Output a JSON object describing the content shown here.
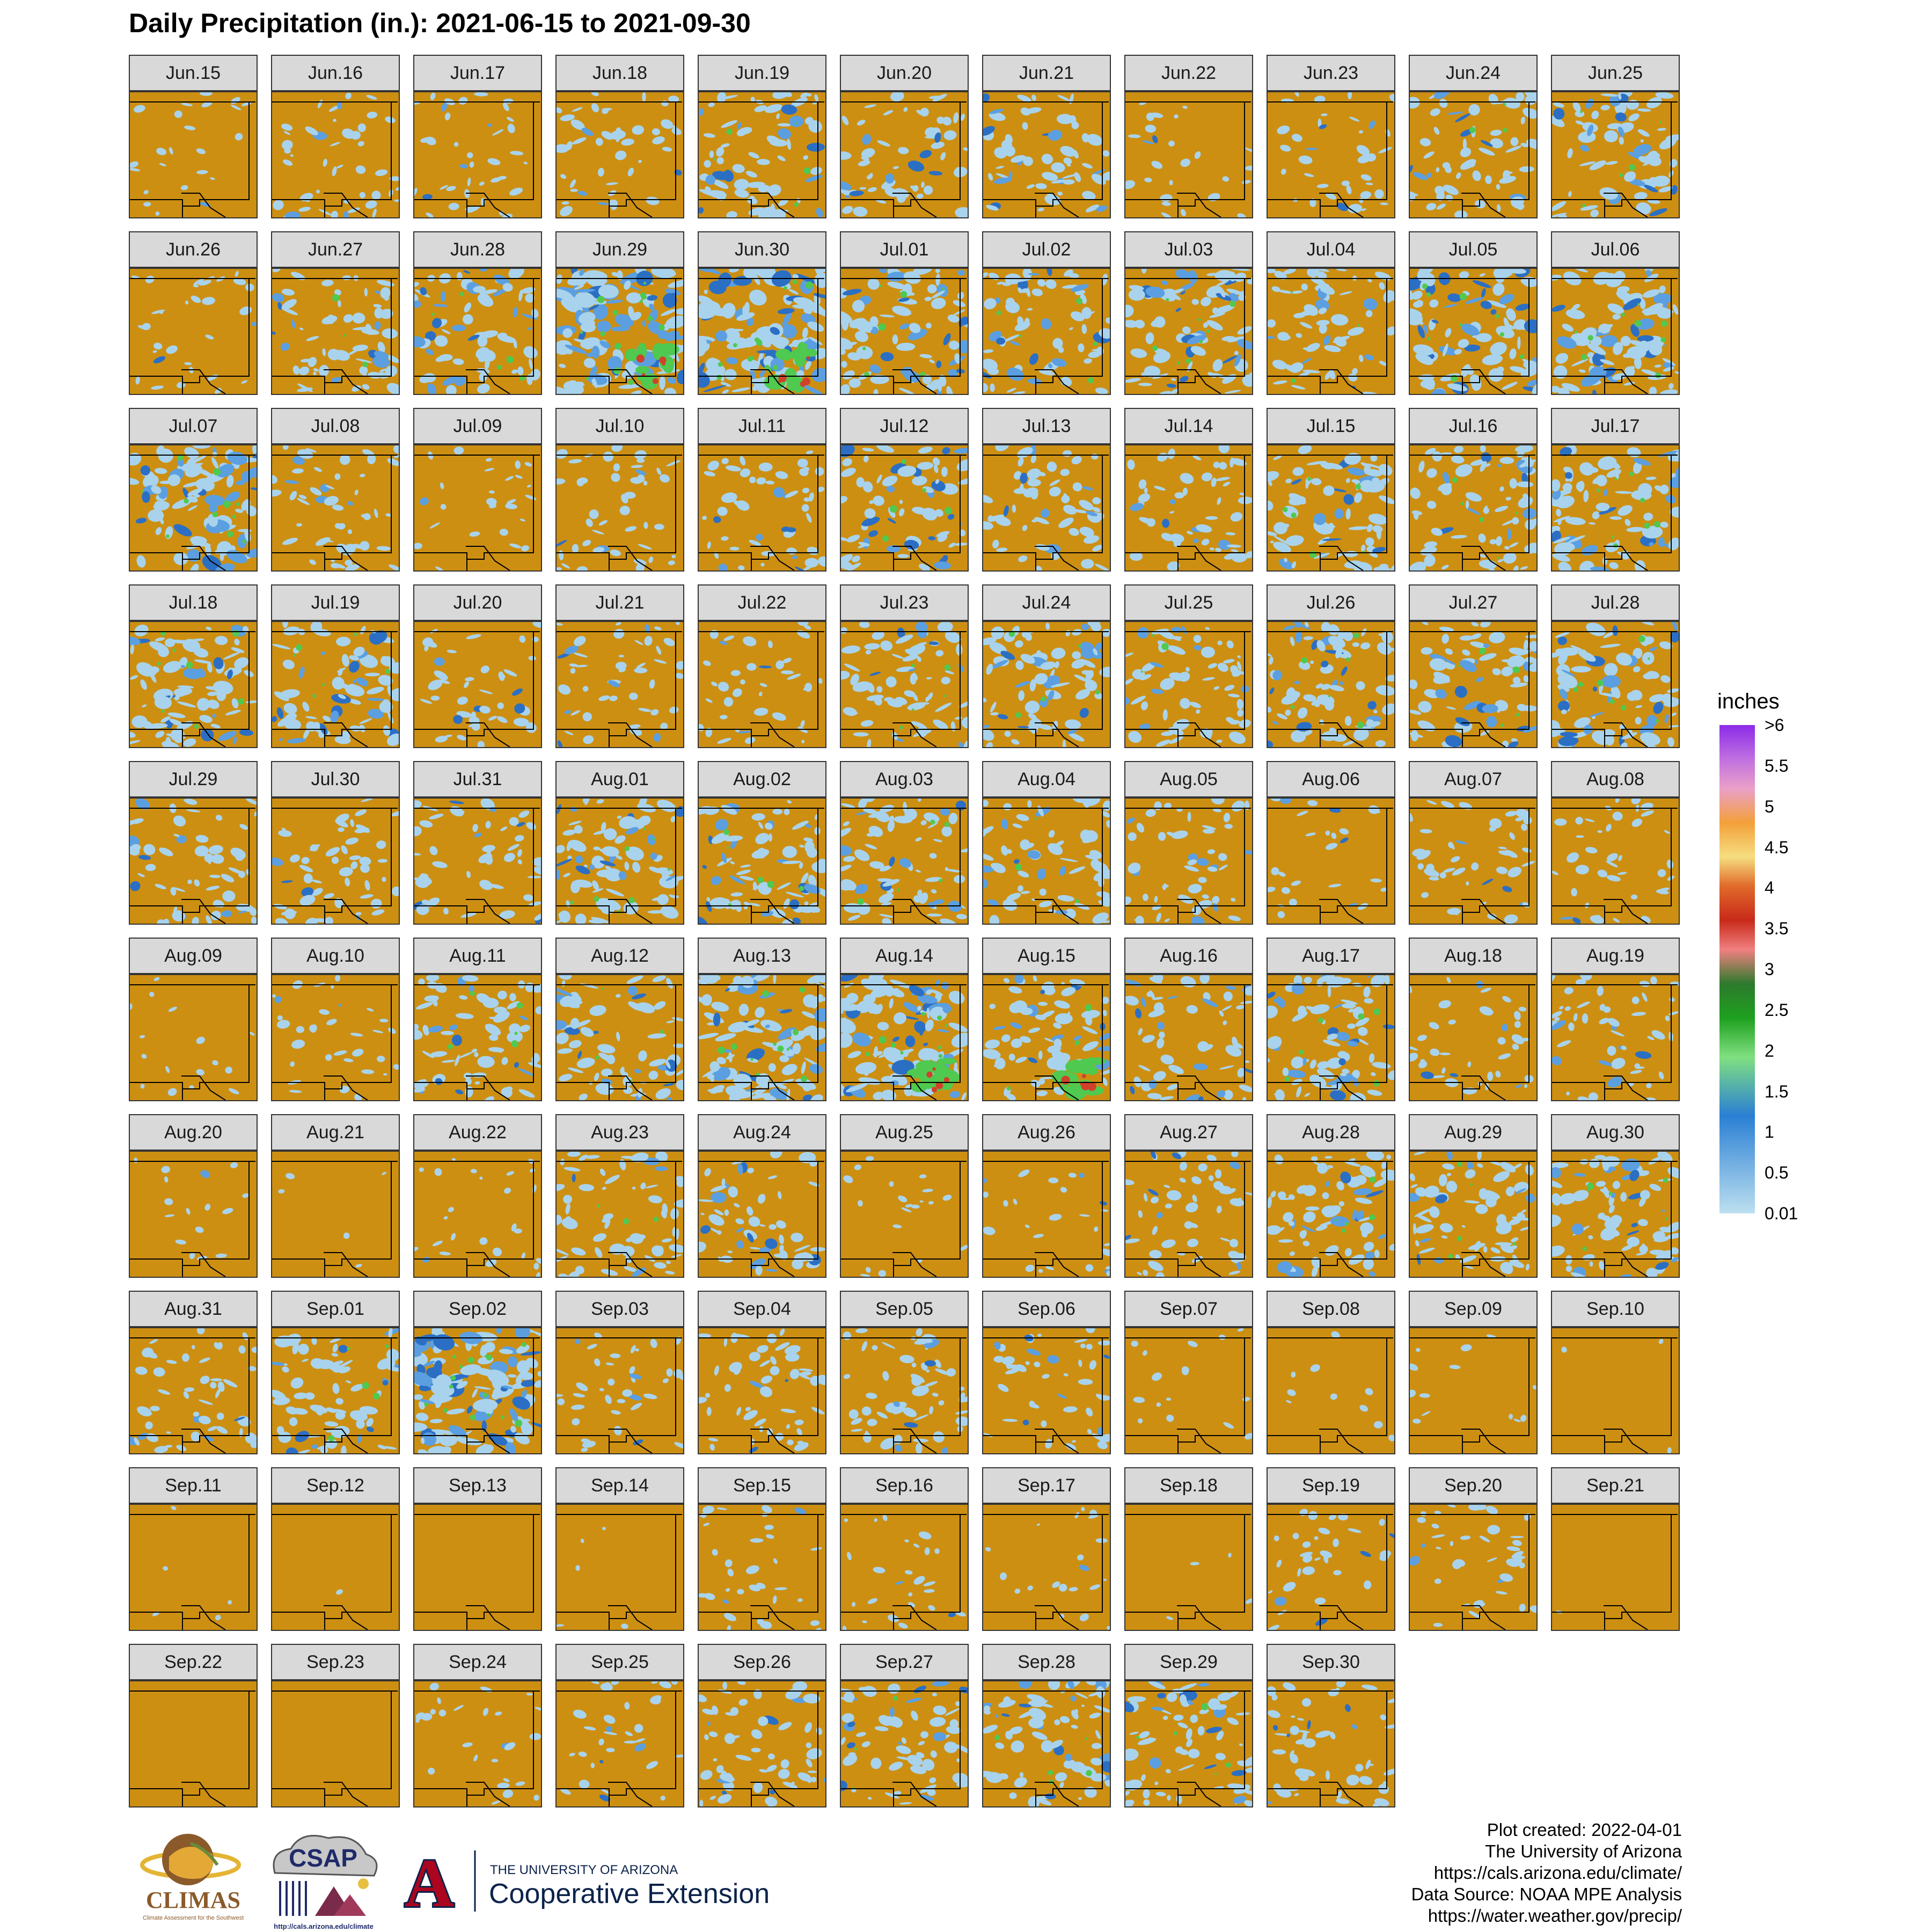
{
  "title": "Daily Precipitation (in.): 2021-06-15 to 2021-09-30",
  "panels": [
    {
      "label": "Jun.15",
      "rain": 0.18,
      "seed": 101
    },
    {
      "label": "Jun.16",
      "rain": 0.35,
      "seed": 102
    },
    {
      "label": "Jun.17",
      "rain": 0.3,
      "seed": 103
    },
    {
      "label": "Jun.18",
      "rain": 0.35,
      "seed": 104
    },
    {
      "label": "Jun.19",
      "rain": 0.55,
      "seed": 105
    },
    {
      "label": "Jun.20",
      "rain": 0.45,
      "seed": 106
    },
    {
      "label": "Jun.21",
      "rain": 0.45,
      "seed": 107
    },
    {
      "label": "Jun.22",
      "rain": 0.2,
      "seed": 108
    },
    {
      "label": "Jun.23",
      "rain": 0.3,
      "seed": 109
    },
    {
      "label": "Jun.24",
      "rain": 0.5,
      "seed": 110
    },
    {
      "label": "Jun.25",
      "rain": 0.55,
      "seed": 111
    },
    {
      "label": "Jun.26",
      "rain": 0.25,
      "seed": 112
    },
    {
      "label": "Jun.27",
      "rain": 0.5,
      "seed": 113
    },
    {
      "label": "Jun.28",
      "rain": 0.55,
      "seed": 114
    },
    {
      "label": "Jun.29",
      "rain": 0.9,
      "seed": 115,
      "heavy": true
    },
    {
      "label": "Jun.30",
      "rain": 0.9,
      "seed": 116,
      "heavy": true
    },
    {
      "label": "Jul.01",
      "rain": 0.65,
      "seed": 117
    },
    {
      "label": "Jul.02",
      "rain": 0.55,
      "seed": 118
    },
    {
      "label": "Jul.03",
      "rain": 0.65,
      "seed": 119
    },
    {
      "label": "Jul.04",
      "rain": 0.5,
      "seed": 120
    },
    {
      "label": "Jul.05",
      "rain": 0.7,
      "seed": 121
    },
    {
      "label": "Jul.06",
      "rain": 0.7,
      "seed": 122
    },
    {
      "label": "Jul.07",
      "rain": 0.75,
      "seed": 123
    },
    {
      "label": "Jul.08",
      "rain": 0.4,
      "seed": 124
    },
    {
      "label": "Jul.09",
      "rain": 0.2,
      "seed": 125
    },
    {
      "label": "Jul.10",
      "rain": 0.35,
      "seed": 126
    },
    {
      "label": "Jul.11",
      "rain": 0.4,
      "seed": 127
    },
    {
      "label": "Jul.12",
      "rain": 0.55,
      "seed": 128
    },
    {
      "label": "Jul.13",
      "rain": 0.45,
      "seed": 129
    },
    {
      "label": "Jul.14",
      "rain": 0.4,
      "seed": 130
    },
    {
      "label": "Jul.15",
      "rain": 0.6,
      "seed": 131
    },
    {
      "label": "Jul.16",
      "rain": 0.55,
      "seed": 132
    },
    {
      "label": "Jul.17",
      "rain": 0.65,
      "seed": 133
    },
    {
      "label": "Jul.18",
      "rain": 0.65,
      "seed": 134
    },
    {
      "label": "Jul.19",
      "rain": 0.6,
      "seed": 135
    },
    {
      "label": "Jul.20",
      "rain": 0.35,
      "seed": 136
    },
    {
      "label": "Jul.21",
      "rain": 0.35,
      "seed": 137
    },
    {
      "label": "Jul.22",
      "rain": 0.3,
      "seed": 138
    },
    {
      "label": "Jul.23",
      "rain": 0.55,
      "seed": 139
    },
    {
      "label": "Jul.24",
      "rain": 0.6,
      "seed": 140
    },
    {
      "label": "Jul.25",
      "rain": 0.5,
      "seed": 141
    },
    {
      "label": "Jul.26",
      "rain": 0.6,
      "seed": 142
    },
    {
      "label": "Jul.27",
      "rain": 0.55,
      "seed": 143
    },
    {
      "label": "Jul.28",
      "rain": 0.65,
      "seed": 144
    },
    {
      "label": "Jul.29",
      "rain": 0.45,
      "seed": 145
    },
    {
      "label": "Jul.30",
      "rain": 0.4,
      "seed": 146
    },
    {
      "label": "Jul.31",
      "rain": 0.4,
      "seed": 147
    },
    {
      "label": "Aug.01",
      "rain": 0.65,
      "seed": 148
    },
    {
      "label": "Aug.02",
      "rain": 0.6,
      "seed": 149
    },
    {
      "label": "Aug.03",
      "rain": 0.55,
      "seed": 150
    },
    {
      "label": "Aug.04",
      "rain": 0.5,
      "seed": 151
    },
    {
      "label": "Aug.05",
      "rain": 0.4,
      "seed": 152
    },
    {
      "label": "Aug.06",
      "rain": 0.2,
      "seed": 153
    },
    {
      "label": "Aug.07",
      "rain": 0.35,
      "seed": 154
    },
    {
      "label": "Aug.08",
      "rain": 0.3,
      "seed": 155
    },
    {
      "label": "Aug.09",
      "rain": 0.12,
      "seed": 156
    },
    {
      "label": "Aug.10",
      "rain": 0.25,
      "seed": 157
    },
    {
      "label": "Aug.11",
      "rain": 0.55,
      "seed": 158
    },
    {
      "label": "Aug.12",
      "rain": 0.55,
      "seed": 159
    },
    {
      "label": "Aug.13",
      "rain": 0.75,
      "seed": 160
    },
    {
      "label": "Aug.14",
      "rain": 0.8,
      "seed": 161,
      "heavy": true
    },
    {
      "label": "Aug.15",
      "rain": 0.55,
      "seed": 162,
      "heavy": true
    },
    {
      "label": "Aug.16",
      "rain": 0.45,
      "seed": 163
    },
    {
      "label": "Aug.17",
      "rain": 0.6,
      "seed": 164
    },
    {
      "label": "Aug.18",
      "rain": 0.3,
      "seed": 165
    },
    {
      "label": "Aug.19",
      "rain": 0.4,
      "seed": 166
    },
    {
      "label": "Aug.20",
      "rain": 0.12,
      "seed": 167
    },
    {
      "label": "Aug.21",
      "rain": 0.04,
      "seed": 168
    },
    {
      "label": "Aug.22",
      "rain": 0.2,
      "seed": 169
    },
    {
      "label": "Aug.23",
      "rain": 0.5,
      "seed": 170
    },
    {
      "label": "Aug.24",
      "rain": 0.45,
      "seed": 171
    },
    {
      "label": "Aug.25",
      "rain": 0.15,
      "seed": 172
    },
    {
      "label": "Aug.26",
      "rain": 0.2,
      "seed": 173
    },
    {
      "label": "Aug.27",
      "rain": 0.4,
      "seed": 174
    },
    {
      "label": "Aug.28",
      "rain": 0.55,
      "seed": 175
    },
    {
      "label": "Aug.29",
      "rain": 0.55,
      "seed": 176
    },
    {
      "label": "Aug.30",
      "rain": 0.6,
      "seed": 177
    },
    {
      "label": "Aug.31",
      "rain": 0.4,
      "seed": 178
    },
    {
      "label": "Sep.01",
      "rain": 0.55,
      "seed": 179
    },
    {
      "label": "Sep.02",
      "rain": 0.9,
      "seed": 180
    },
    {
      "label": "Sep.03",
      "rain": 0.3,
      "seed": 181
    },
    {
      "label": "Sep.04",
      "rain": 0.4,
      "seed": 182
    },
    {
      "label": "Sep.05",
      "rain": 0.45,
      "seed": 183
    },
    {
      "label": "Sep.06",
      "rain": 0.35,
      "seed": 184
    },
    {
      "label": "Sep.07",
      "rain": 0.12,
      "seed": 185
    },
    {
      "label": "Sep.08",
      "rain": 0.08,
      "seed": 186
    },
    {
      "label": "Sep.09",
      "rain": 0.1,
      "seed": 187
    },
    {
      "label": "Sep.10",
      "rain": 0.02,
      "seed": 188
    },
    {
      "label": "Sep.11",
      "rain": 0.04,
      "seed": 189
    },
    {
      "label": "Sep.12",
      "rain": 0.01,
      "seed": 190
    },
    {
      "label": "Sep.13",
      "rain": 0.0,
      "seed": 191
    },
    {
      "label": "Sep.14",
      "rain": 0.04,
      "seed": 192
    },
    {
      "label": "Sep.15",
      "rain": 0.25,
      "seed": 193
    },
    {
      "label": "Sep.16",
      "rain": 0.2,
      "seed": 194
    },
    {
      "label": "Sep.17",
      "rain": 0.15,
      "seed": 195
    },
    {
      "label": "Sep.18",
      "rain": 0.03,
      "seed": 196
    },
    {
      "label": "Sep.19",
      "rain": 0.25,
      "seed": 197
    },
    {
      "label": "Sep.20",
      "rain": 0.3,
      "seed": 198
    },
    {
      "label": "Sep.21",
      "rain": 0.01,
      "seed": 199
    },
    {
      "label": "Sep.22",
      "rain": 0.0,
      "seed": 200
    },
    {
      "label": "Sep.23",
      "rain": 0.0,
      "seed": 201
    },
    {
      "label": "Sep.24",
      "rain": 0.2,
      "seed": 202
    },
    {
      "label": "Sep.25",
      "rain": 0.25,
      "seed": 203
    },
    {
      "label": "Sep.26",
      "rain": 0.45,
      "seed": 204
    },
    {
      "label": "Sep.27",
      "rain": 0.5,
      "seed": 205
    },
    {
      "label": "Sep.28",
      "rain": 0.55,
      "seed": 206
    },
    {
      "label": "Sep.29",
      "rain": 0.55,
      "seed": 207
    },
    {
      "label": "Sep.30",
      "rain": 0.4,
      "seed": 208
    }
  ],
  "legend": {
    "title": "inches",
    "labels": [
      ">6",
      "5.5",
      "5",
      "4.5",
      "4",
      "3.5",
      "3",
      "2.5",
      "2",
      "1.5",
      "1",
      "0.5",
      "0.01"
    ],
    "colors": [
      "#8a2be2",
      "#c77dd8",
      "#e9a9c8",
      "#f3a24a",
      "#f6e08a",
      "#d4532c",
      "#c62d1a",
      "#f07a7a",
      "#2e8b2e",
      "#1e9e1e",
      "#7be07b",
      "#2f7fd0",
      "#b9dcef"
    ]
  },
  "colors": {
    "background": "#cd8f12",
    "light_rain": "#a9d3ec",
    "moderate_rain": "#5b9fe0",
    "heavy_rain": "#2b6fc4",
    "green_rain": "#4fc94f",
    "red_rain": "#d0412a",
    "border": "#000000"
  },
  "footer": [
    "Plot created: 2022-04-01",
    "The University of Arizona",
    "https://cals.arizona.edu/climate/",
    "Data Source: NOAA MPE Analysis",
    "https://water.weather.gov/precip/"
  ],
  "logos": {
    "climas_name": "CLIMAS",
    "climas_tagline": "Climate Assessment for the Southwest",
    "csap_name": "CSAP",
    "csap_url": "http://cals.arizona.edu/climate",
    "ua_line1": "THE UNIVERSITY OF ARIZONA",
    "ua_line2": "Cooperative Extension",
    "ua_letter": "A"
  }
}
